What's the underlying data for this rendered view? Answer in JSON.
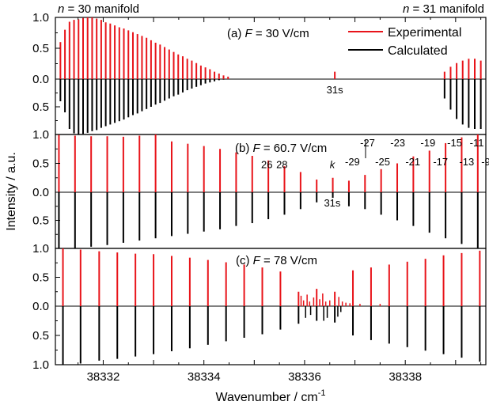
{
  "chart_data": {
    "type": "line",
    "x_axis": {
      "label": "Wavenumber / cm",
      "label_superscript": "-1",
      "range": [
        38331.05,
        38339.6
      ],
      "ticks": [
        38332,
        38334,
        38336,
        38338
      ],
      "tick_labels": [
        "38332",
        "38334",
        "38336",
        "38338"
      ]
    },
    "y_axis_label": "Intensity / a.u.",
    "y_tick_labels_upper": [
      "1.0",
      "0.5",
      "0.0"
    ],
    "y_tick_labels_lower": [
      "0.5",
      "1.0"
    ],
    "legend": {
      "placement": "top-right",
      "items": [
        {
          "name": "Experimental",
          "color": "#e8141a"
        },
        {
          "name": "Calculated",
          "color": "#000000"
        }
      ]
    },
    "header": {
      "left": {
        "italic": "n",
        "text": " = 30 manifold"
      },
      "right": {
        "italic": "n",
        "text": " = 31 manifold"
      }
    },
    "panels": [
      {
        "id": "a",
        "label_prefix": "(a) ",
        "label_var": "F",
        "label_value": " = 30 V/cm",
        "experimental": {
          "line_positions": [
            38331.15,
            38331.24,
            38331.33,
            38331.42,
            38331.51,
            38331.6,
            38331.69,
            38331.78,
            38331.87,
            38331.96,
            38332.05,
            38332.14,
            38332.23,
            38332.32,
            38332.41,
            38332.5,
            38332.59,
            38332.68,
            38332.77,
            38332.86,
            38332.95,
            38333.04,
            38333.13,
            38333.22,
            38333.31,
            38333.4,
            38333.49,
            38333.58,
            38333.67,
            38333.76,
            38333.85,
            38333.94,
            38334.03,
            38334.12,
            38334.21,
            38334.3,
            38334.39,
            38334.48
          ],
          "intensities": [
            0.6,
            0.8,
            0.93,
            0.96,
            0.97,
            0.99,
            1.0,
            1.0,
            0.98,
            0.96,
            0.92,
            0.9,
            0.87,
            0.84,
            0.82,
            0.79,
            0.76,
            0.73,
            0.7,
            0.67,
            0.63,
            0.59,
            0.56,
            0.52,
            0.48,
            0.44,
            0.4,
            0.37,
            0.33,
            0.3,
            0.26,
            0.22,
            0.19,
            0.16,
            0.12,
            0.09,
            0.06,
            0.04
          ],
          "extra_lines": [
            {
              "x": 38336.6,
              "y": 0.12
            }
          ],
          "right_positions": [
            38338.78,
            38338.9,
            38339.02,
            38339.14,
            38339.26,
            38339.38,
            38339.5
          ],
          "right_intensities": [
            0.12,
            0.2,
            0.26,
            0.3,
            0.33,
            0.33,
            0.3
          ]
        },
        "calculated": {
          "line_positions": [
            38331.15,
            38331.24,
            38331.33,
            38331.42,
            38331.51,
            38331.6,
            38331.69,
            38331.78,
            38331.87,
            38331.96,
            38332.05,
            38332.14,
            38332.23,
            38332.32,
            38332.41,
            38332.5,
            38332.59,
            38332.68,
            38332.77,
            38332.86,
            38332.95,
            38333.04,
            38333.13,
            38333.22,
            38333.31,
            38333.4,
            38333.49,
            38333.58,
            38333.67,
            38333.76,
            38333.85,
            38333.94,
            38334.03,
            38334.12,
            38334.21,
            38334.3,
            38334.39,
            38334.48
          ],
          "intensities": [
            0.4,
            0.6,
            0.9,
            0.98,
            1.0,
            0.99,
            0.97,
            0.94,
            0.92,
            0.88,
            0.85,
            0.82,
            0.79,
            0.76,
            0.73,
            0.69,
            0.65,
            0.62,
            0.58,
            0.54,
            0.5,
            0.46,
            0.43,
            0.39,
            0.35,
            0.31,
            0.28,
            0.24,
            0.2,
            0.17,
            0.14,
            0.11,
            0.08,
            0.06,
            0.04,
            0.02,
            0.01,
            0.005
          ],
          "right_positions": [
            38338.78,
            38338.9,
            38339.02,
            38339.14,
            38339.26,
            38339.38,
            38339.5
          ],
          "right_intensities": [
            0.35,
            0.55,
            0.72,
            0.82,
            0.88,
            0.9,
            0.9
          ]
        },
        "annotations": [
          {
            "text": "31s",
            "x": 38336.6,
            "y": -0.2
          }
        ]
      },
      {
        "id": "b",
        "label_prefix": "(b) ",
        "label_var": "F",
        "label_value": " = 60.7 V/cm",
        "experimental": {
          "line_positions": [
            38331.12,
            38331.44,
            38331.76,
            38332.08,
            38332.4,
            38332.72,
            38333.04,
            38333.36,
            38333.68,
            38334.0,
            38334.32,
            38334.64,
            38334.96,
            38335.28,
            38335.6,
            38335.92,
            38336.24,
            38336.56,
            38336.88,
            38337.2,
            38337.52,
            38337.84,
            38338.16,
            38338.48,
            38338.8,
            38339.12,
            38339.44
          ],
          "intensities": [
            1.0,
            0.98,
            0.97,
            0.97,
            0.96,
            0.98,
            1.0,
            0.88,
            0.84,
            0.8,
            0.75,
            0.69,
            0.63,
            0.55,
            0.45,
            0.35,
            0.22,
            0.25,
            0.2,
            0.3,
            0.4,
            0.5,
            0.62,
            0.72,
            0.85,
            0.95,
            1.0
          ]
        },
        "calculated": {
          "line_positions": [
            38331.12,
            38331.44,
            38331.76,
            38332.08,
            38332.4,
            38332.72,
            38333.04,
            38333.36,
            38333.68,
            38334.0,
            38334.32,
            38334.64,
            38334.96,
            38335.28,
            38335.6,
            38335.92,
            38336.24,
            38336.56,
            38336.88,
            38337.2,
            38337.52,
            38337.84,
            38338.16,
            38338.48,
            38338.8,
            38339.12,
            38339.44
          ],
          "intensities": [
            1.0,
            1.0,
            0.97,
            0.94,
            0.9,
            0.86,
            0.82,
            0.78,
            0.74,
            0.7,
            0.66,
            0.6,
            0.55,
            0.48,
            0.4,
            0.3,
            0.18,
            0.1,
            0.25,
            0.3,
            0.4,
            0.5,
            0.6,
            0.72,
            0.82,
            0.92,
            1.0
          ]
        },
        "annotations": [
          {
            "text": "26",
            "x": 38335.25,
            "y": 0.42
          },
          {
            "text": "28",
            "x": 38335.55,
            "y": 0.42
          },
          {
            "text": "k",
            "x": 38336.55,
            "y": 0.42,
            "italic": true
          },
          {
            "text": "31s",
            "x": 38336.55,
            "y": -0.2
          }
        ],
        "k_upper": [
          {
            "text": "-27",
            "x": 38337.25
          },
          {
            "text": "-23",
            "x": 38337.85
          },
          {
            "text": "-19",
            "x": 38338.45
          },
          {
            "text": "-15",
            "x": 38338.98
          },
          {
            "text": "-11",
            "x": 38339.42
          }
        ],
        "k_lower": [
          {
            "text": "-29",
            "x": 38336.95
          },
          {
            "text": "-25",
            "x": 38337.55
          },
          {
            "text": "-21",
            "x": 38338.15
          },
          {
            "text": "-17",
            "x": 38338.7
          },
          {
            "text": "-13",
            "x": 38339.22
          },
          {
            "text": "-9",
            "x": 38339.6
          }
        ]
      },
      {
        "id": "c",
        "label_prefix": "(c) ",
        "label_var": "F",
        "label_value": " = 78 V/cm",
        "experimental": {
          "line_positions": [
            38331.2,
            38331.55,
            38331.92,
            38332.28,
            38332.64,
            38333.0,
            38333.36,
            38333.72,
            38334.08,
            38334.44,
            38334.8,
            38335.16,
            38335.52,
            38335.88,
            38336.24,
            38336.6,
            38336.96,
            38337.32,
            38337.68,
            38338.04,
            38338.4,
            38338.76,
            38339.12,
            38339.48
          ],
          "intensities": [
            1.0,
            0.98,
            0.95,
            0.93,
            0.91,
            0.9,
            0.87,
            0.84,
            0.8,
            0.76,
            0.72,
            0.67,
            0.6,
            0.25,
            0.3,
            0.25,
            0.62,
            0.67,
            0.72,
            0.77,
            0.82,
            0.88,
            0.92,
            0.96
          ],
          "noise_lines": [
            {
              "x": 38335.93,
              "y": 0.18
            },
            {
              "x": 38335.98,
              "y": 0.1
            },
            {
              "x": 38336.05,
              "y": 0.2
            },
            {
              "x": 38336.1,
              "y": 0.08
            },
            {
              "x": 38336.18,
              "y": 0.15
            },
            {
              "x": 38336.3,
              "y": 0.12
            },
            {
              "x": 38336.36,
              "y": 0.22
            },
            {
              "x": 38336.42,
              "y": 0.08
            },
            {
              "x": 38336.5,
              "y": 0.1
            },
            {
              "x": 38336.68,
              "y": 0.16
            },
            {
              "x": 38336.75,
              "y": 0.08
            },
            {
              "x": 38336.82,
              "y": 0.06
            },
            {
              "x": 38336.9,
              "y": 0.05
            },
            {
              "x": 38337.1,
              "y": 0.04
            },
            {
              "x": 38337.5,
              "y": 0.04
            }
          ]
        },
        "calculated": {
          "line_positions": [
            38331.2,
            38331.55,
            38331.92,
            38332.28,
            38332.64,
            38333.0,
            38333.36,
            38333.72,
            38334.08,
            38334.44,
            38334.8,
            38335.16,
            38335.52,
            38335.88,
            38336.24,
            38336.6,
            38336.96,
            38337.32,
            38337.68,
            38338.04,
            38338.4,
            38338.76,
            38339.12,
            38339.48
          ],
          "intensities": [
            1.0,
            0.98,
            0.93,
            0.9,
            0.86,
            0.82,
            0.77,
            0.72,
            0.66,
            0.6,
            0.54,
            0.48,
            0.4,
            0.3,
            0.25,
            0.28,
            0.5,
            0.58,
            0.64,
            0.7,
            0.76,
            0.82,
            0.88,
            0.95
          ],
          "extra_lines": [
            {
              "x": 38336.02,
              "y": 0.2
            },
            {
              "x": 38336.12,
              "y": 0.15
            },
            {
              "x": 38336.38,
              "y": 0.25
            },
            {
              "x": 38336.45,
              "y": 0.2
            },
            {
              "x": 38336.66,
              "y": 0.18
            },
            {
              "x": 38336.72,
              "y": 0.1
            }
          ]
        },
        "annotations": []
      }
    ]
  }
}
